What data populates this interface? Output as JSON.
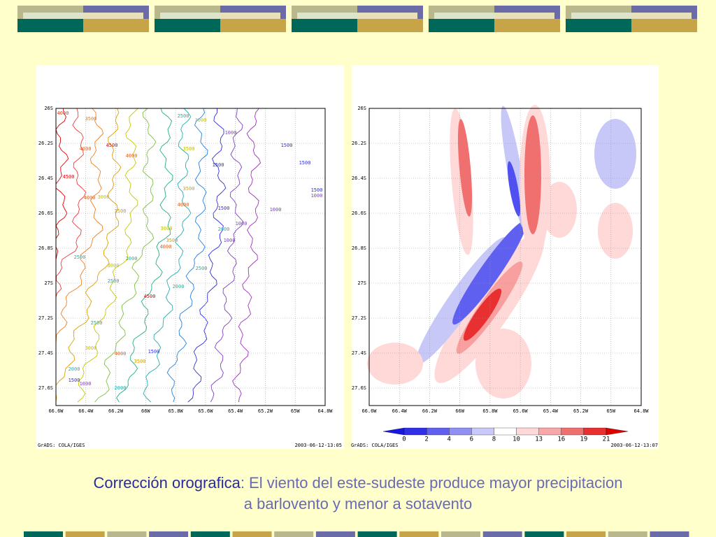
{
  "plots": [
    {
      "y_labels": [
        "26S",
        "26.2S",
        "26.4S",
        "26.6S",
        "26.8S",
        "27S",
        "27.2S",
        "27.4S",
        "27.6S"
      ],
      "x_labels": [
        "66.6W",
        "66.4W",
        "66.2W",
        "66W",
        "65.8W",
        "65.6W",
        "65.4W",
        "65.2W",
        "65W",
        "64.8W"
      ],
      "contour_labels": [
        "4000",
        "3500",
        "2500",
        "3000",
        "1000",
        "4500",
        "4000",
        "4000",
        "3500",
        "1500",
        "1500",
        "1500",
        "4500",
        "4000",
        "3000",
        "3500",
        "1500",
        "1000",
        "4000",
        "1500",
        "1000",
        "3500",
        "1000",
        "3000",
        "2000",
        "3500",
        "4000",
        "1000",
        "2500",
        "2000",
        "3000",
        "2500",
        "2500",
        "2000",
        "4500",
        "2500",
        "3000",
        "4000",
        "1500",
        "3500",
        "2000",
        "1500",
        "1000",
        "2000"
      ],
      "footer_left": "GrADS: COLA/IGES",
      "footer_right": "2003-06-12-13:05"
    },
    {
      "y_labels": [
        "26S",
        "26.2S",
        "26.4S",
        "26.6S",
        "26.8S",
        "27S",
        "27.2S",
        "27.4S",
        "27.6S"
      ],
      "x_labels": [
        "66.6W",
        "66.4W",
        "66.2W",
        "66W",
        "65.8W",
        "65.6W",
        "65.4W",
        "65.2W",
        "65W",
        "64.8W"
      ],
      "colorbar_labels": [
        "0",
        "2",
        "4",
        "6",
        "8",
        "10",
        "13",
        "16",
        "19",
        "21"
      ],
      "footer_left": "GrADS: COLA/IGES",
      "footer_right": "2003-06-12-13:07"
    }
  ],
  "caption": {
    "highlight": "Corrección orografica",
    "text": ": El viento del este-sudeste produce mayor precipitacion a barlovento y menor a sotavento"
  }
}
